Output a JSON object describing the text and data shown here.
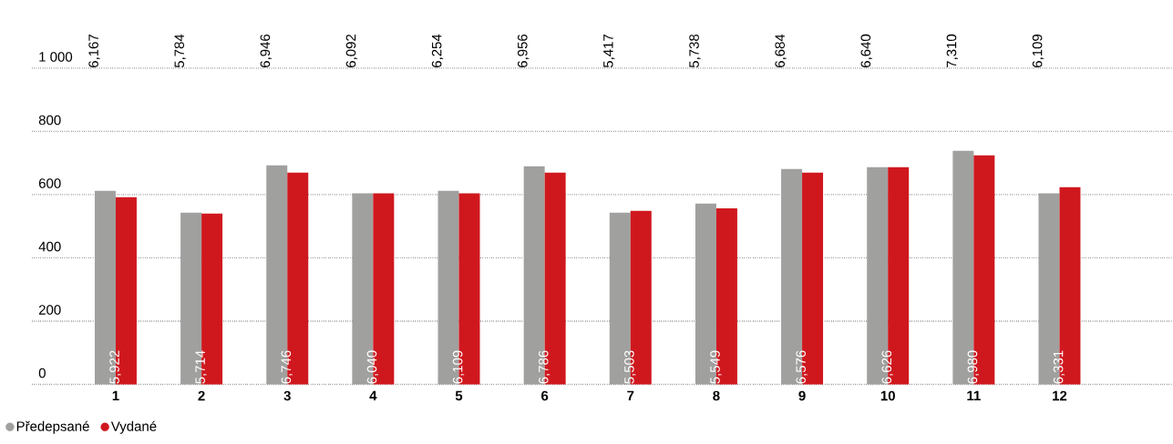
{
  "chart_data": {
    "type": "bar",
    "categories": [
      "1",
      "2",
      "3",
      "4",
      "5",
      "6",
      "7",
      "8",
      "9",
      "10",
      "11",
      "12"
    ],
    "series": [
      {
        "name": "Předepsané",
        "color": "#a0a09f",
        "values": [
          612,
          543,
          693,
          604,
          612,
          690,
          543,
          572,
          681,
          687,
          739,
          604
        ]
      },
      {
        "name": "Vydané",
        "color": "#cf181e",
        "values": [
          592,
          540,
          670,
          604,
          604,
          670,
          549,
          557,
          670,
          687,
          724,
          624
        ]
      }
    ],
    "annotations": [
      "6,167",
      "5,784",
      "6,946",
      "6,092",
      "6,254",
      "6,956",
      "5,417",
      "5,738",
      "6,684",
      "6,640",
      "7,310",
      "6,109",
      "5,922",
      "5,714",
      "6,746",
      "6,040",
      "6,109",
      "6,786",
      "5,503",
      "5,549",
      "6,576",
      "6,626",
      "6,980",
      "6,331"
    ],
    "ylim": [
      0,
      1000
    ],
    "yticks": [
      0,
      200,
      400,
      600,
      800,
      {
        "value": 1000,
        "label": "1 000"
      }
    ],
    "grid": "y",
    "legend": "bottom left"
  }
}
